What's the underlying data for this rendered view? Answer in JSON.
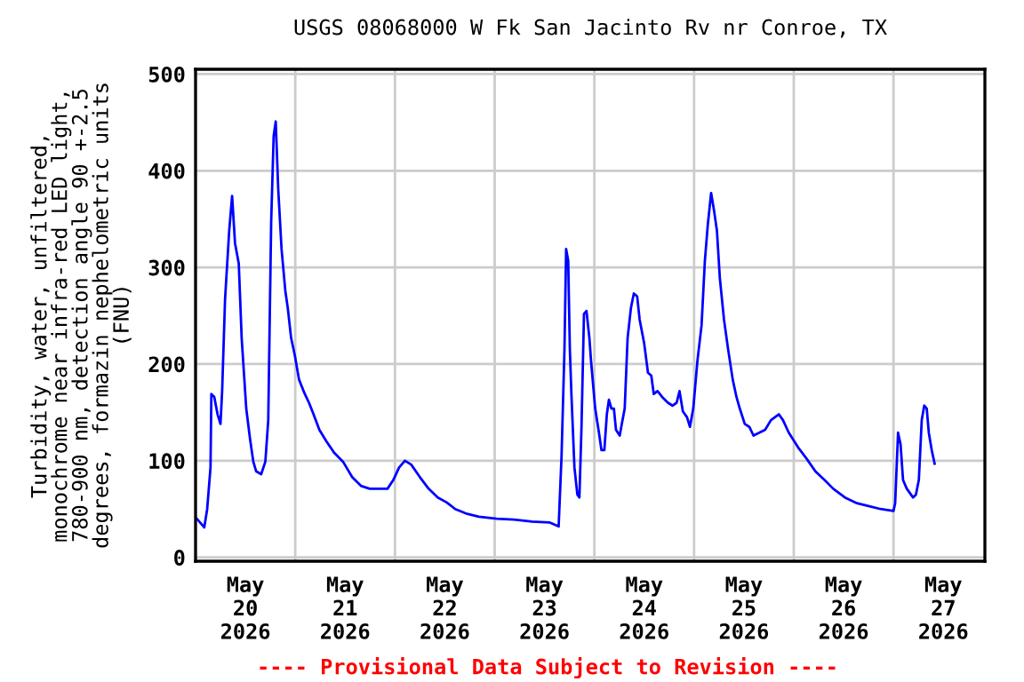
{
  "chart_data": {
    "type": "line",
    "title": "USGS 08068000 W Fk San Jacinto Rv nr Conroe, TX",
    "ylabel": "Turbidity, water, unfiltered,\nmonochrome near infra-red LED light,\n780-900 nm, detection angle 90 +-2.5\ndegrees, formazin nephelometric units\n(FNU)",
    "annotations": [
      "---- Provisional Data Subject to Revision ----"
    ],
    "series": [
      {
        "color": "#0000ff",
        "x": [
          "2026-05-20T00:18",
          "2026-05-20T02:06",
          "2026-05-20T02:48",
          "2026-05-20T03:36",
          "2026-05-20T03:48",
          "2026-05-20T04:30",
          "2026-05-20T05:18",
          "2026-05-20T06:00",
          "2026-05-20T06:24",
          "2026-05-20T07:06",
          "2026-05-20T08:06",
          "2026-05-20T08:48",
          "2026-05-20T09:30",
          "2026-05-20T10:24",
          "2026-05-20T11:06",
          "2026-05-20T12:12",
          "2026-05-20T13:06",
          "2026-05-20T13:54",
          "2026-05-20T14:36",
          "2026-05-20T15:48",
          "2026-05-20T16:48",
          "2026-05-20T17:30",
          "2026-05-20T18:12",
          "2026-05-20T18:48",
          "2026-05-20T19:18",
          "2026-05-20T19:54",
          "2026-05-20T20:42",
          "2026-05-20T21:36",
          "2026-05-20T22:12",
          "2026-05-20T23:00",
          "2026-05-20T23:54",
          "2026-05-21T00:54",
          "2026-05-21T02:18",
          "2026-05-21T03:18",
          "2026-05-21T04:24",
          "2026-05-21T05:48",
          "2026-05-21T07:30",
          "2026-05-21T09:24",
          "2026-05-21T11:30",
          "2026-05-21T13:42",
          "2026-05-21T15:48",
          "2026-05-21T17:54",
          "2026-05-21T20:06",
          "2026-05-21T22:12",
          "2026-05-21T23:36",
          "2026-05-22T01:00",
          "2026-05-22T02:24",
          "2026-05-22T03:54",
          "2026-05-22T06:00",
          "2026-05-22T08:06",
          "2026-05-22T10:18",
          "2026-05-22T12:24",
          "2026-05-22T14:30",
          "2026-05-22T17:24",
          "2026-05-22T20:12",
          "2026-05-23T00:30",
          "2026-05-23T04:42",
          "2026-05-23T09:00",
          "2026-05-23T13:18",
          "2026-05-23T15:24",
          "2026-05-23T16:06",
          "2026-05-23T16:48",
          "2026-05-23T17:12",
          "2026-05-23T17:42",
          "2026-05-23T18:06",
          "2026-05-23T18:30",
          "2026-05-23T19:12",
          "2026-05-23T19:54",
          "2026-05-23T20:24",
          "2026-05-23T20:54",
          "2026-05-23T21:30",
          "2026-05-23T22:06",
          "2026-05-23T22:48",
          "2026-05-23T23:12",
          "2026-05-24T00:12",
          "2026-05-24T01:06",
          "2026-05-24T01:42",
          "2026-05-24T02:24",
          "2026-05-24T03:00",
          "2026-05-24T03:30",
          "2026-05-24T04:06",
          "2026-05-24T04:42",
          "2026-05-24T05:12",
          "2026-05-24T06:06",
          "2026-05-24T06:36",
          "2026-05-24T07:18",
          "2026-05-24T08:00",
          "2026-05-24T08:48",
          "2026-05-24T09:30",
          "2026-05-24T10:18",
          "2026-05-24T10:54",
          "2026-05-24T12:00",
          "2026-05-24T12:54",
          "2026-05-24T13:42",
          "2026-05-24T14:18",
          "2026-05-24T15:12",
          "2026-05-24T16:18",
          "2026-05-24T17:42",
          "2026-05-24T18:48",
          "2026-05-24T19:48",
          "2026-05-24T20:30",
          "2026-05-24T21:18",
          "2026-05-24T22:18",
          "2026-05-24T23:00",
          "2026-05-24T23:48",
          "2026-05-25T00:48",
          "2026-05-25T01:48",
          "2026-05-25T02:36",
          "2026-05-25T03:18",
          "2026-05-25T04:06",
          "2026-05-25T04:48",
          "2026-05-25T05:30",
          "2026-05-25T06:12",
          "2026-05-25T07:12",
          "2026-05-25T08:12",
          "2026-05-25T09:18",
          "2026-05-25T10:12",
          "2026-05-25T11:00",
          "2026-05-25T12:12",
          "2026-05-25T13:18",
          "2026-05-25T14:18",
          "2026-05-25T15:42",
          "2026-05-25T17:06",
          "2026-05-25T18:30",
          "2026-05-25T20:24",
          "2026-05-25T21:24",
          "2026-05-25T22:48",
          "2026-05-26T01:00",
          "2026-05-26T03:06",
          "2026-05-26T05:12",
          "2026-05-26T07:24",
          "2026-05-26T09:30",
          "2026-05-26T12:18",
          "2026-05-26T15:12",
          "2026-05-26T18:00",
          "2026-05-26T20:54",
          "2026-05-27T00:00",
          "2026-05-27T00:24",
          "2026-05-27T01:06",
          "2026-05-27T01:42",
          "2026-05-27T02:18",
          "2026-05-27T03:12",
          "2026-05-27T04:42",
          "2026-05-27T05:24",
          "2026-05-27T06:06",
          "2026-05-27T06:48",
          "2026-05-27T07:24",
          "2026-05-27T08:00",
          "2026-05-27T08:30",
          "2026-05-27T09:12",
          "2026-05-27T09:54"
        ],
        "values": [
          40,
          31,
          50,
          93,
          169,
          166,
          148,
          138,
          172,
          267,
          338,
          374,
          325,
          304,
          227,
          154,
          123,
          99,
          89,
          86,
          99,
          142,
          347,
          436,
          451,
          381,
          319,
          276,
          258,
          227,
          209,
          184,
          169,
          160,
          148,
          132,
          120,
          108,
          99,
          83,
          74,
          71,
          71,
          71,
          80,
          93,
          100,
          96,
          83,
          71,
          62,
          57,
          50,
          45,
          42,
          40,
          39,
          37,
          36,
          32,
          105,
          215,
          319,
          307,
          215,
          166,
          93,
          65,
          62,
          135,
          252,
          255,
          227,
          203,
          154,
          129,
          111,
          111,
          148,
          163,
          154,
          154,
          132,
          126,
          138,
          154,
          227,
          258,
          273,
          270,
          246,
          221,
          191,
          188,
          169,
          172,
          166,
          160,
          157,
          160,
          172,
          151,
          145,
          135,
          154,
          203,
          240,
          307,
          344,
          377,
          359,
          338,
          289,
          246,
          215,
          184,
          166,
          154,
          138,
          135,
          126,
          129,
          132,
          142,
          148,
          142,
          129,
          114,
          102,
          89,
          80,
          71,
          62,
          56,
          53,
          50,
          48,
          56,
          129,
          117,
          80,
          71,
          62,
          65,
          80,
          142,
          157,
          154,
          129,
          111,
          97
        ]
      }
    ],
    "xlim": [
      "2026-05-20T00:00",
      "2026-05-27T22:00"
    ],
    "xticks": [
      {
        "value": "2026-05-21T00:00",
        "label": null
      },
      {
        "value": "2026-05-22T00:00",
        "label": null
      },
      {
        "value": "2026-05-23T00:00",
        "label": null
      },
      {
        "value": "2026-05-24T00:00",
        "label": null
      },
      {
        "value": "2026-05-25T00:00",
        "label": null
      },
      {
        "value": "2026-05-26T00:00",
        "label": null
      },
      {
        "value": "2026-05-27T00:00",
        "label": null
      },
      {
        "value": "2026-05-20T12:00",
        "label": "May\n20\n2026"
      },
      {
        "value": "2026-05-21T12:00",
        "label": "May\n21\n2026"
      },
      {
        "value": "2026-05-22T12:00",
        "label": "May\n22\n2026"
      },
      {
        "value": "2026-05-23T12:00",
        "label": "May\n23\n2026"
      },
      {
        "value": "2026-05-24T12:00",
        "label": "May\n24\n2026"
      },
      {
        "value": "2026-05-25T12:00",
        "label": "May\n25\n2026"
      },
      {
        "value": "2026-05-26T12:00",
        "label": "May\n26\n2026"
      },
      {
        "value": "2026-05-27T12:00",
        "label": "May\n27\n2026"
      }
    ],
    "ylim": [
      -4,
      505
    ],
    "yticks": [
      0,
      100,
      200,
      300,
      400,
      500
    ],
    "grid": true,
    "line_style": "solid",
    "marker": "none"
  }
}
